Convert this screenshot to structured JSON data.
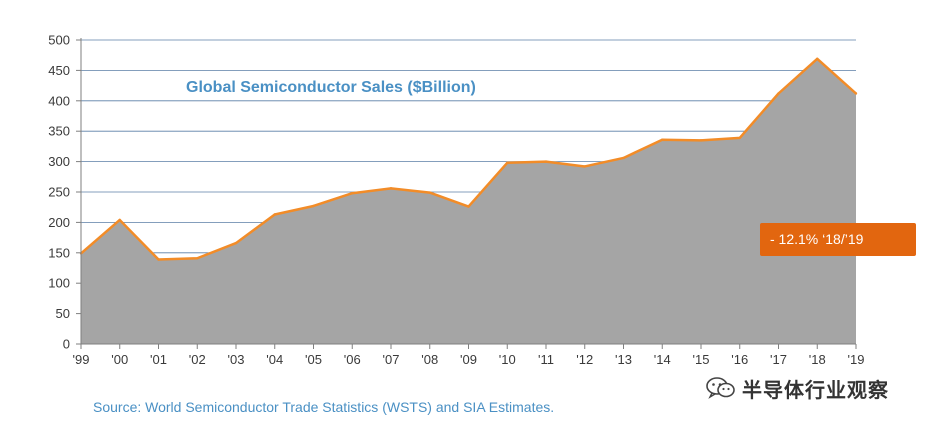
{
  "colors": {
    "area_fill": "#a5a5a5",
    "line": "#f28c28",
    "grid": "#5b7fa6",
    "title": "#4a90c4",
    "callout_bg": "#e2660f"
  },
  "chart_data": {
    "type": "area",
    "title": "Global Semiconductor Sales ($Billion)",
    "x": [
      "'99",
      "'00",
      "'01",
      "'02",
      "'03",
      "'04",
      "'05",
      "'06",
      "'07",
      "'08",
      "'09",
      "'10",
      "'11",
      "'12",
      "'13",
      "'14",
      "'15",
      "'16",
      "'17",
      "'18",
      "'19"
    ],
    "values": [
      149,
      204,
      139,
      141,
      166,
      213,
      227,
      248,
      256,
      249,
      226,
      298,
      300,
      292,
      306,
      336,
      335,
      339,
      412,
      469,
      412
    ],
    "yticks": [
      0,
      50,
      100,
      150,
      200,
      250,
      300,
      350,
      400,
      450,
      500
    ],
    "ylim": [
      0,
      500
    ],
    "grid": true,
    "annotation": "- 12.1% ‘18/’19",
    "source": "Source: World Semiconductor Trade Statistics (WSTS) and SIA Estimates."
  },
  "watermark": {
    "icon": "wechat-icon",
    "text": "半导体行业观察"
  }
}
